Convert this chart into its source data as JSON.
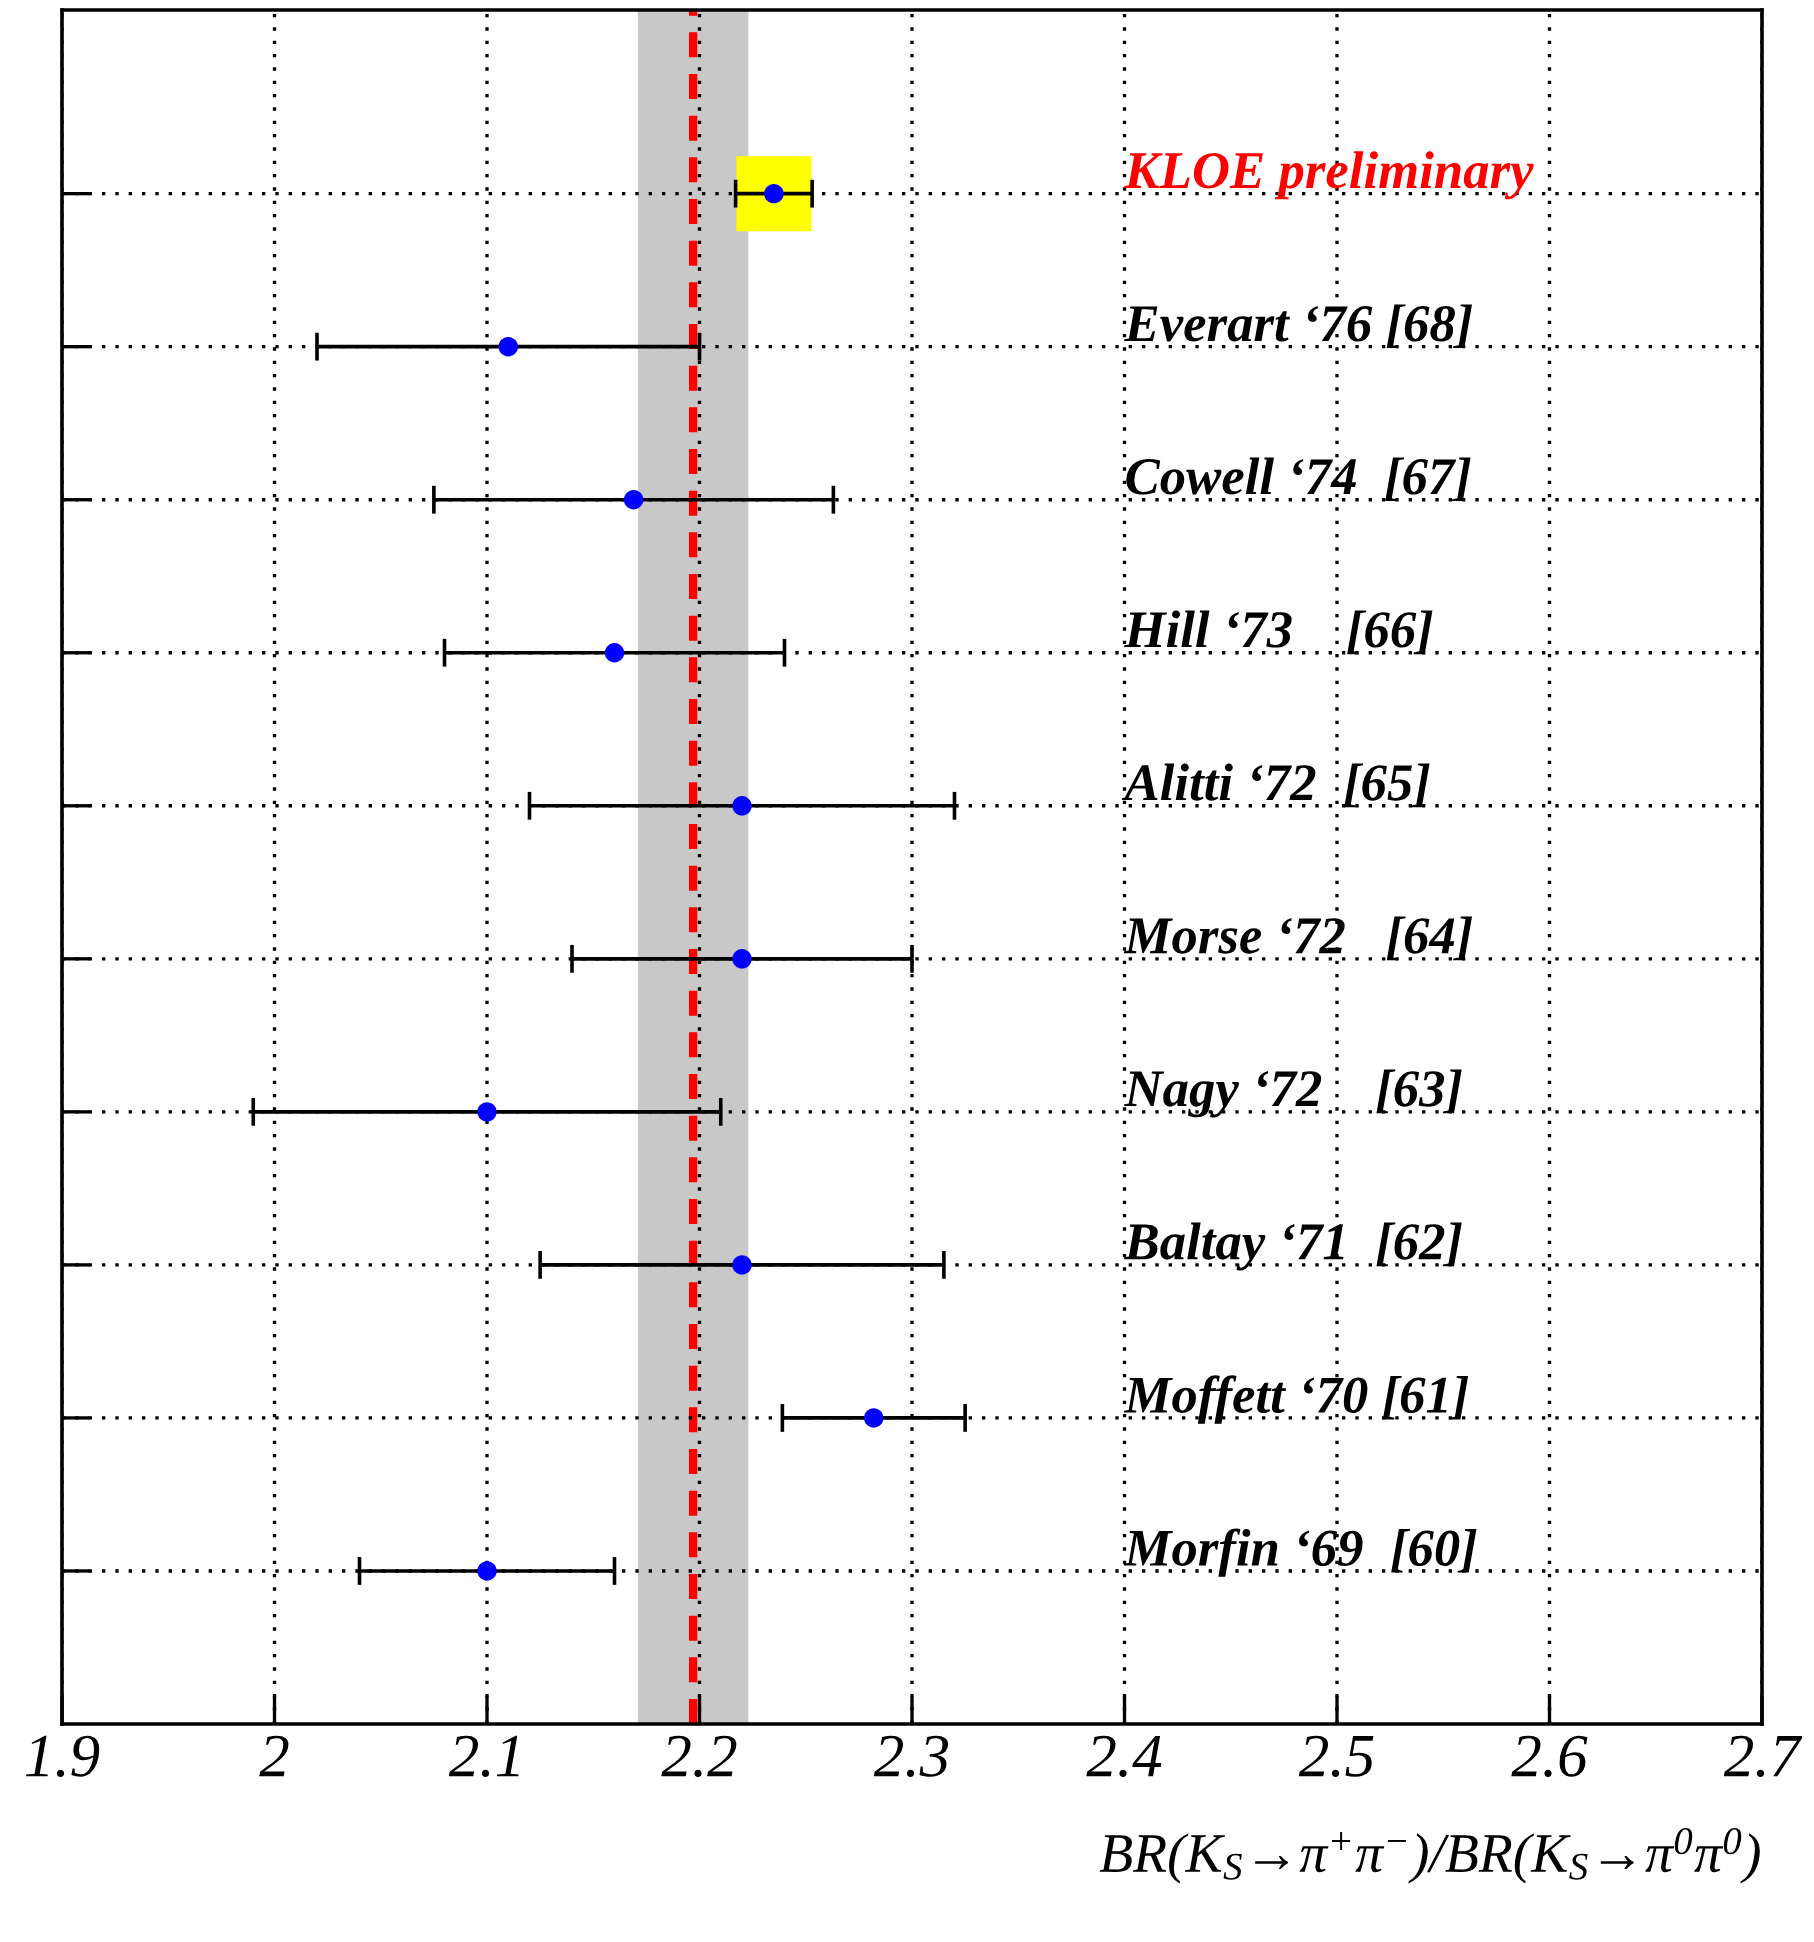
{
  "chart_data": {
    "type": "scatter",
    "orientation": "horizontal",
    "xlabel": "BR(K$_{S}$→π$^{+}$π$^{−}$)/BR(K$_{S}$→π$^{0}$π$^{0}$)",
    "xlim": [
      1.9,
      2.7
    ],
    "xticks": [
      1.9,
      2,
      2.1,
      2.2,
      2.3,
      2.4,
      2.5,
      2.6,
      2.7
    ],
    "categories": [
      "KLOE preliminary",
      "Everart ‘76 [68]",
      "Cowell ‘74  [67]",
      "Hill ‘73    [66]",
      "Alitti ‘72  [65]",
      "Morse ‘72   [64]",
      "Nagy ‘72    [63]",
      "Baltay ‘71  [62]",
      "Moffett ‘70 [61]",
      "Morfin ‘69  [60]"
    ],
    "grid": true,
    "series": [
      {
        "marker": "square",
        "color": "#ffff00",
        "values": [
          2.235,
          null,
          null,
          null,
          null,
          null,
          null,
          null,
          null,
          null
        ]
      },
      {
        "marker": "circle",
        "color": "#0000ff",
        "values": [
          2.235,
          2.11,
          2.169,
          2.16,
          2.22,
          2.22,
          2.1,
          2.22,
          2.282,
          2.1
        ],
        "errors": [
          [
            2.217,
            2.253
          ],
          [
            2.02,
            2.2
          ],
          [
            2.075,
            2.263
          ],
          [
            2.08,
            2.24
          ],
          [
            2.12,
            2.32
          ],
          [
            2.14,
            2.3
          ],
          [
            1.99,
            2.21
          ],
          [
            2.125,
            2.315
          ],
          [
            2.239,
            2.325
          ],
          [
            2.04,
            2.16
          ]
        ]
      }
    ],
    "ref_lines": [
      {
        "axis": "x",
        "value": 2.197,
        "color": "#ff0000",
        "line_style": "dashed"
      }
    ],
    "bands": [
      {
        "axis": "x",
        "from": 2.171,
        "to": 2.223,
        "color": "#c8c8c8"
      }
    ]
  }
}
